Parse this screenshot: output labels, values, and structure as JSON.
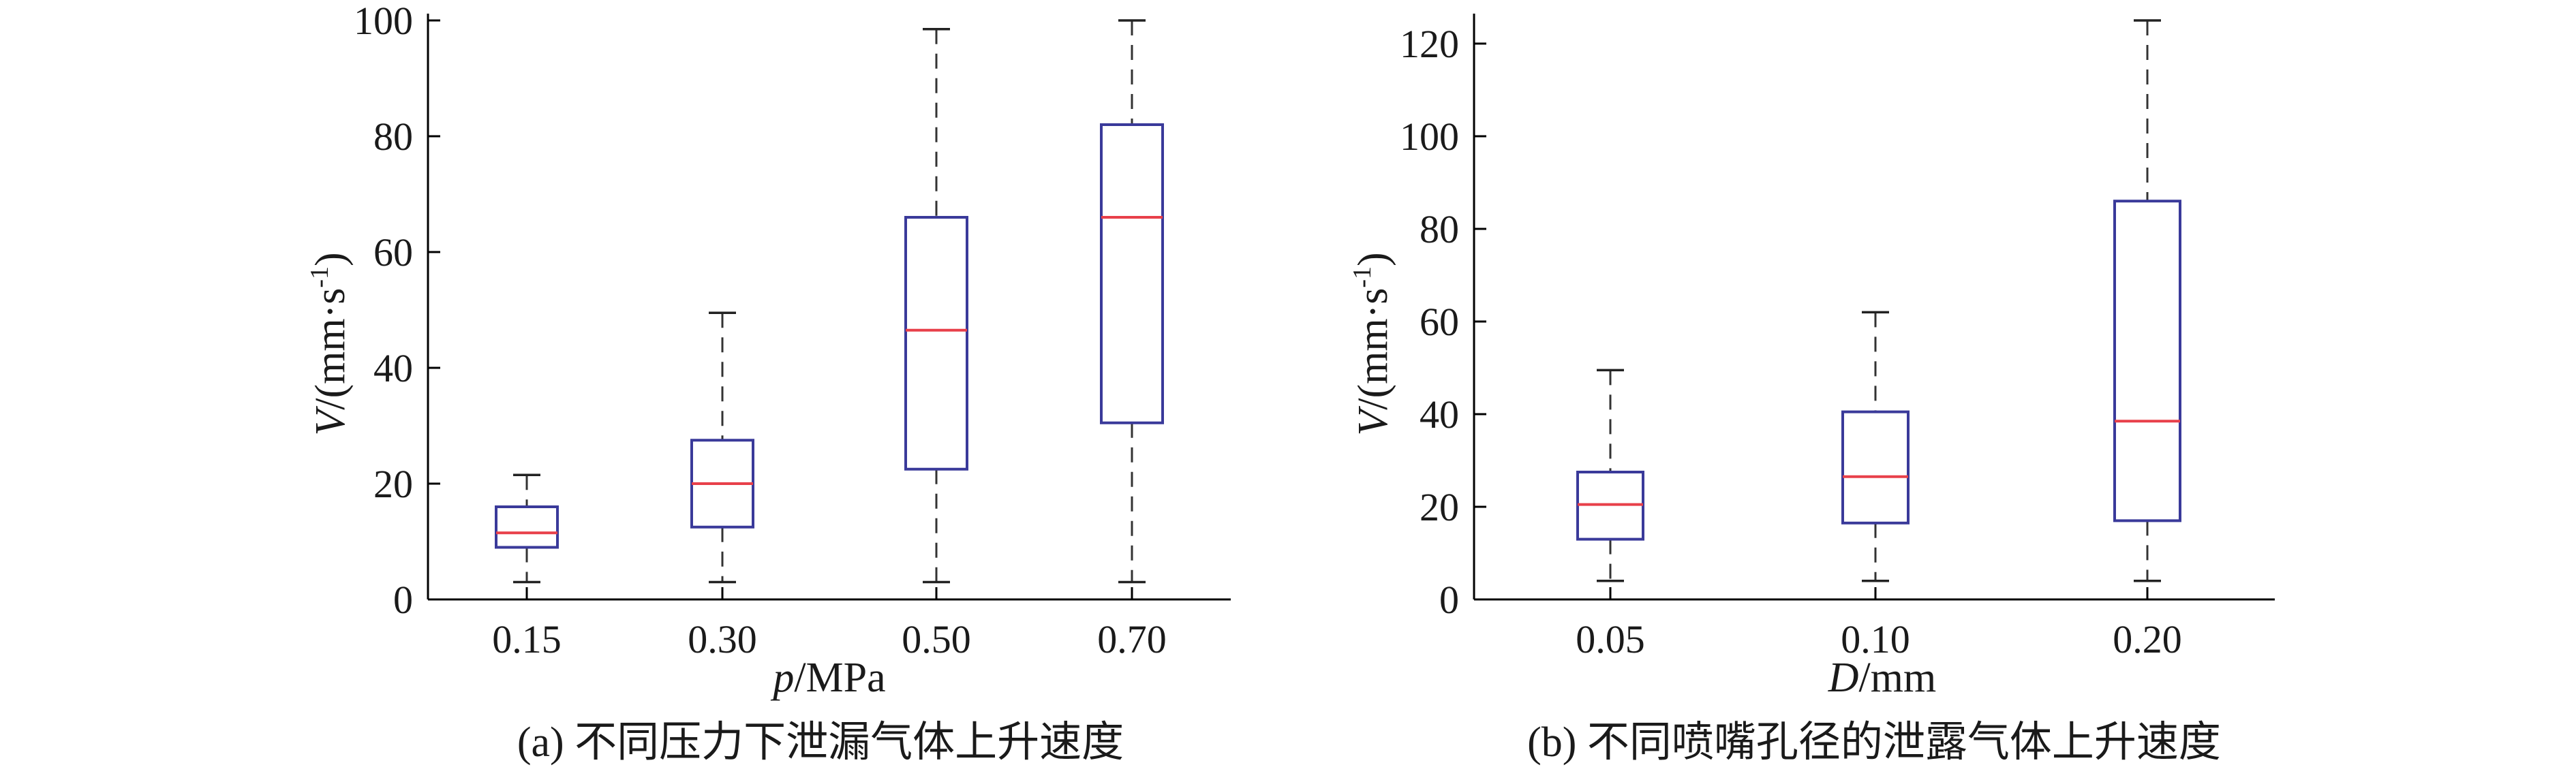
{
  "chart_data": [
    {
      "type": "box",
      "caption": "(a) 不同压力下泄漏气体上升速度",
      "xlabel_var": "p",
      "xlabel_unit": "/MPa",
      "ylabel_var": "V",
      "ylabel_unit": "/(mm·s",
      "ylabel_exp": "-1",
      "ylabel_close": ")",
      "ylim": [
        0,
        100
      ],
      "yticks": [
        0,
        20,
        40,
        60,
        80,
        100
      ],
      "categories": [
        "0.15",
        "0.30",
        "0.50",
        "0.70"
      ],
      "boxes": [
        {
          "category": "0.15",
          "min": 3,
          "q1": 9,
          "median": 11.5,
          "q3": 16,
          "max": 21.5
        },
        {
          "category": "0.30",
          "min": 3,
          "q1": 12.5,
          "median": 20,
          "q3": 27.5,
          "max": 49.5
        },
        {
          "category": "0.50",
          "min": 3,
          "q1": 22.5,
          "median": 46.5,
          "q3": 66,
          "max": 98.5
        },
        {
          "category": "0.70",
          "min": 3,
          "q1": 30.5,
          "median": 66,
          "q3": 82,
          "max": 100
        }
      ]
    },
    {
      "type": "box",
      "caption": "(b) 不同喷嘴孔径的泄露气体上升速度",
      "xlabel_var": "D",
      "xlabel_unit": "/mm",
      "ylabel_var": "V",
      "ylabel_unit": "/(mm·s",
      "ylabel_exp": "-1",
      "ylabel_close": ")",
      "ylim": [
        0,
        125
      ],
      "yticks": [
        0,
        20,
        40,
        60,
        80,
        100,
        120
      ],
      "categories": [
        "0.05",
        "0.10",
        "0.20"
      ],
      "boxes": [
        {
          "category": "0.05",
          "min": 4,
          "q1": 13,
          "median": 20.5,
          "q3": 27.5,
          "max": 49.5
        },
        {
          "category": "0.10",
          "min": 4,
          "q1": 16.5,
          "median": 26.5,
          "q3": 40.5,
          "max": 62
        },
        {
          "category": "0.20",
          "min": 4,
          "q1": 17,
          "median": 38.5,
          "q3": 86,
          "max": 125
        }
      ]
    }
  ]
}
